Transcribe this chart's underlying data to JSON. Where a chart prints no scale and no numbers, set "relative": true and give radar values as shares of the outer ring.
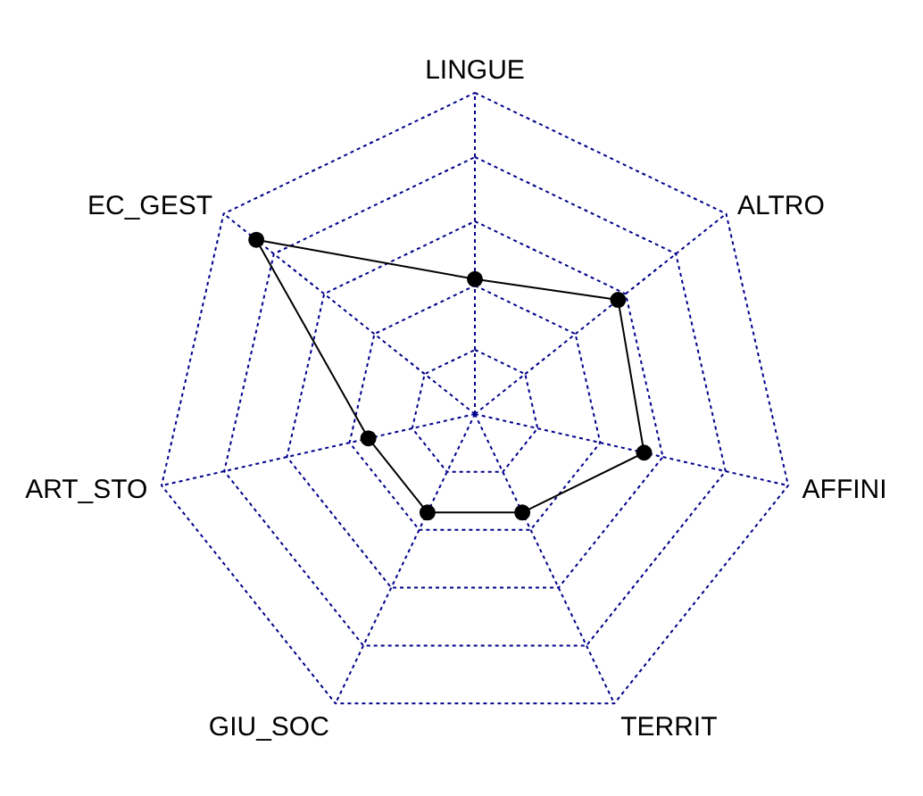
{
  "chart_data": {
    "type": "radar",
    "relative": true,
    "categories": [
      "LINGUE",
      "ALTRO",
      "AFFINI",
      "TERRIT",
      "GIU_SOC",
      "ART_STO",
      "EC_GEST"
    ],
    "series": [
      {
        "color": "#000000",
        "values": [
          0.42,
          0.57,
          0.54,
          0.34,
          0.34,
          0.34,
          0.87
        ]
      }
    ],
    "grid": true,
    "marker": "circle",
    "line_style": "solid"
  }
}
